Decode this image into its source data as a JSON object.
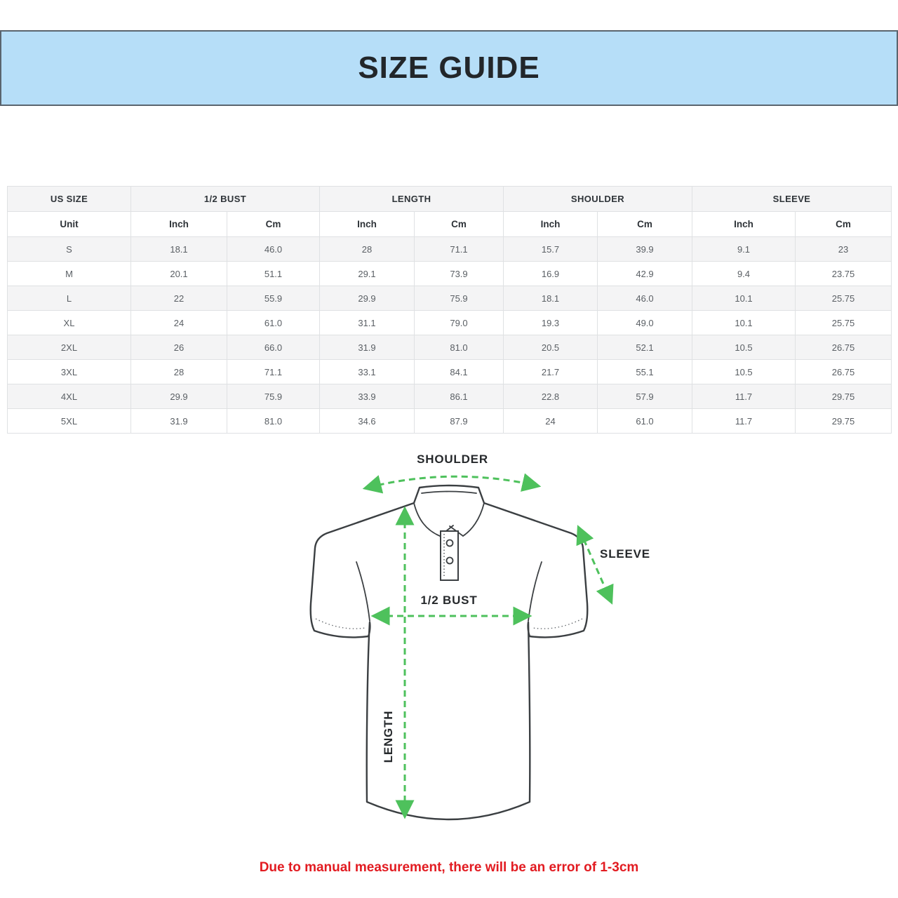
{
  "banner": {
    "title": "SIZE GUIDE",
    "bg_color": "#b6def8",
    "border_color": "#5a646e"
  },
  "table": {
    "groups": [
      {
        "label": "US SIZE",
        "span": 1
      },
      {
        "label": "1/2 BUST",
        "span": 2
      },
      {
        "label": "LENGTH",
        "span": 2
      },
      {
        "label": "SHOULDER",
        "span": 2
      },
      {
        "label": "SLEEVE",
        "span": 2
      }
    ],
    "unit_row": [
      "Unit",
      "Inch",
      "Cm",
      "Inch",
      "Cm",
      "Inch",
      "Cm",
      "Inch",
      "Cm"
    ],
    "rows": [
      {
        "size": "S",
        "values": [
          "18.1",
          "46.0",
          "28",
          "71.1",
          "15.7",
          "39.9",
          "9.1",
          "23"
        ]
      },
      {
        "size": "M",
        "values": [
          "20.1",
          "51.1",
          "29.1",
          "73.9",
          "16.9",
          "42.9",
          "9.4",
          "23.75"
        ]
      },
      {
        "size": "L",
        "values": [
          "22",
          "55.9",
          "29.9",
          "75.9",
          "18.1",
          "46.0",
          "10.1",
          "25.75"
        ]
      },
      {
        "size": "XL",
        "values": [
          "24",
          "61.0",
          "31.1",
          "79.0",
          "19.3",
          "49.0",
          "10.1",
          "25.75"
        ]
      },
      {
        "size": "2XL",
        "values": [
          "26",
          "66.0",
          "31.9",
          "81.0",
          "20.5",
          "52.1",
          "10.5",
          "26.75"
        ]
      },
      {
        "size": "3XL",
        "values": [
          "28",
          "71.1",
          "33.1",
          "84.1",
          "21.7",
          "55.1",
          "10.5",
          "26.75"
        ]
      },
      {
        "size": "4XL",
        "values": [
          "29.9",
          "75.9",
          "33.9",
          "86.1",
          "22.8",
          "57.9",
          "11.7",
          "29.75"
        ]
      },
      {
        "size": "5XL",
        "values": [
          "31.9",
          "81.0",
          "34.6",
          "87.9",
          "24",
          "61.0",
          "11.7",
          "29.75"
        ]
      }
    ]
  },
  "diagram": {
    "labels": {
      "shoulder": "SHOULDER",
      "sleeve": "SLEEVE",
      "bust": "1/2 BUST",
      "length": "LENGTH"
    },
    "arrow_color": "#4ec15c",
    "outline_color": "#3b3f42"
  },
  "footnote": {
    "text": "Due to manual measurement, there will be an error of 1-3cm",
    "color": "#e21b21"
  }
}
